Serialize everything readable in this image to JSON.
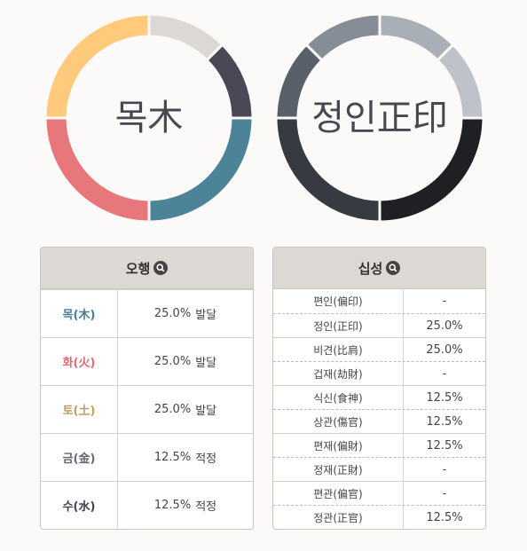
{
  "ohaeng": {
    "title": "오행",
    "center_label": "목木",
    "rows": [
      {
        "label": "목(木)",
        "value": 25,
        "value_label": "25.0%",
        "status": "발달",
        "color": "#4c8397",
        "label_color": "#4a7a92"
      },
      {
        "label": "화(火)",
        "value": 25,
        "value_label": "25.0%",
        "status": "발달",
        "color": "#e8777b",
        "label_color": "#e06a6e"
      },
      {
        "label": "토(土)",
        "value": 25,
        "value_label": "25.0%",
        "status": "발달",
        "color": "#ffca7c",
        "label_color": "#c49a60"
      },
      {
        "label": "금(金)",
        "value": 12.5,
        "value_label": "12.5%",
        "status": "적정",
        "color": "#dcd8d3",
        "label_color": "#6b6570"
      },
      {
        "label": "수(水)",
        "value": 12.5,
        "value_label": "12.5%",
        "status": "적정",
        "color": "#4a4757",
        "label_color": "#3a3f4c"
      }
    ]
  },
  "sipseong": {
    "title": "십성",
    "center_label": "정인正印",
    "rows": [
      {
        "label": "편인(偏印)",
        "value": null,
        "value_label": "-"
      },
      {
        "label": "정인(正印)",
        "value": 25,
        "value_label": "25.0%",
        "color": "#1f2024"
      },
      {
        "label": "비견(比肩)",
        "value": 25,
        "value_label": "25.0%",
        "color": "#373a41"
      },
      {
        "label": "겁재(劫財)",
        "value": null,
        "value_label": "-"
      },
      {
        "label": "식신(食神)",
        "value": 12.5,
        "value_label": "12.5%",
        "color": "#59606a"
      },
      {
        "label": "상관(傷官)",
        "value": 12.5,
        "value_label": "12.5%",
        "color": "#878d96"
      },
      {
        "label": "편재(偏財)",
        "value": 12.5,
        "value_label": "12.5%",
        "color": "#a9afb7"
      },
      {
        "label": "정재(正財)",
        "value": null,
        "value_label": "-"
      },
      {
        "label": "편관(偏官)",
        "value": null,
        "value_label": "-"
      },
      {
        "label": "정관(正官)",
        "value": 12.5,
        "value_label": "12.5%",
        "color": "#bfc3c9"
      }
    ]
  }
}
